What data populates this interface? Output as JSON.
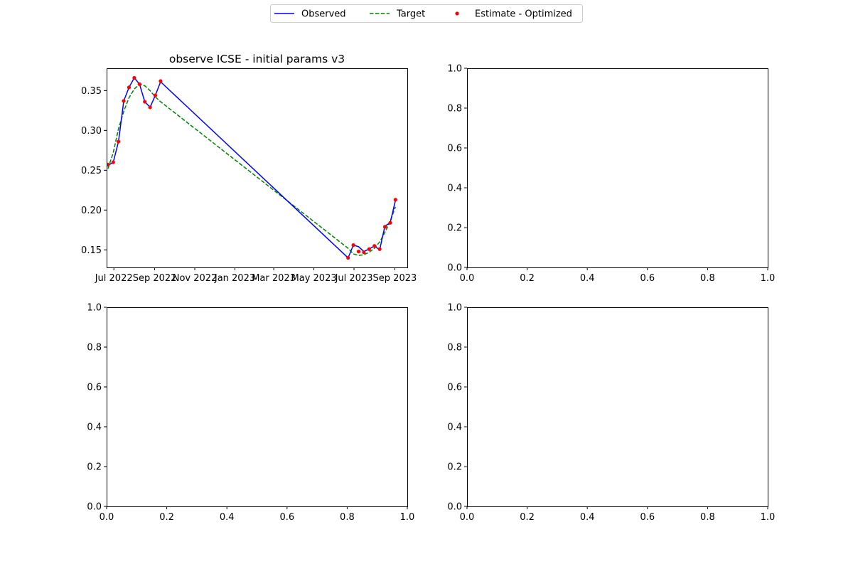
{
  "legend": {
    "placement": "top-center",
    "entries": [
      {
        "label": "Observed",
        "style": "solid-line",
        "color": "#0000ff"
      },
      {
        "label": "Target",
        "style": "dashed-line",
        "color": "#008000"
      },
      {
        "label": "Estimate - Optimized",
        "style": "dot",
        "color": "#ff0000"
      }
    ]
  },
  "chart_data": [
    {
      "type": "line",
      "title": "observe ICSE - initial params v3",
      "xlabel": "",
      "ylabel": "",
      "x_type": "date",
      "xlim": [
        "2022-06-20",
        "2023-09-20"
      ],
      "ylim": [
        0.128,
        0.378
      ],
      "x_ticks": [
        {
          "date": "2022-07-01",
          "label": "Jul 2022"
        },
        {
          "date": "2022-09-01",
          "label": "Sep 2022"
        },
        {
          "date": "2022-11-01",
          "label": "Nov 2022"
        },
        {
          "date": "2023-01-01",
          "label": "Jan 2023"
        },
        {
          "date": "2023-03-01",
          "label": "Mar 2023"
        },
        {
          "date": "2023-05-01",
          "label": "May 2023"
        },
        {
          "date": "2023-07-01",
          "label": "Jul 2023"
        },
        {
          "date": "2023-09-01",
          "label": "Sep 2023"
        }
      ],
      "y_ticks": [
        {
          "value": 0.15,
          "label": "0.15"
        },
        {
          "value": 0.2,
          "label": "0.20"
        },
        {
          "value": 0.25,
          "label": "0.25"
        },
        {
          "value": 0.3,
          "label": "0.30"
        },
        {
          "value": 0.35,
          "label": "0.35"
        }
      ],
      "grid": false,
      "series": [
        {
          "name": "Observed",
          "kind": "line",
          "color": "#0000ff",
          "points": [
            [
              "2022-06-22",
              0.256
            ],
            [
              "2022-06-30",
              0.26
            ],
            [
              "2022-07-08",
              0.286
            ],
            [
              "2022-07-16",
              0.337
            ],
            [
              "2022-07-24",
              0.354
            ],
            [
              "2022-08-01",
              0.366
            ],
            [
              "2022-08-09",
              0.358
            ],
            [
              "2022-08-17",
              0.336
            ],
            [
              "2022-08-25",
              0.329
            ],
            [
              "2022-09-02",
              0.344
            ],
            [
              "2022-09-10",
              0.361
            ],
            [
              "2023-06-22",
              0.14
            ],
            [
              "2023-06-30",
              0.156
            ],
            [
              "2023-07-08",
              0.154
            ],
            [
              "2023-07-16",
              0.148
            ],
            [
              "2023-07-24",
              0.151
            ],
            [
              "2023-08-01",
              0.155
            ],
            [
              "2023-08-09",
              0.15
            ],
            [
              "2023-08-17",
              0.18
            ],
            [
              "2023-08-25",
              0.184
            ],
            [
              "2023-09-02",
              0.212
            ]
          ]
        },
        {
          "name": "Target",
          "kind": "dashed-line",
          "color": "#008000",
          "points": [
            [
              "2022-06-22",
              0.252
            ],
            [
              "2022-06-30",
              0.272
            ],
            [
              "2022-07-08",
              0.302
            ],
            [
              "2022-07-16",
              0.324
            ],
            [
              "2022-07-24",
              0.341
            ],
            [
              "2022-08-01",
              0.352
            ],
            [
              "2022-08-09",
              0.358
            ],
            [
              "2022-08-17",
              0.356
            ],
            [
              "2022-08-25",
              0.35
            ],
            [
              "2022-09-02",
              0.342
            ],
            [
              "2022-09-10",
              0.336
            ],
            [
              "2023-06-22",
              0.152
            ],
            [
              "2023-06-30",
              0.145
            ],
            [
              "2023-07-08",
              0.143
            ],
            [
              "2023-07-16",
              0.144
            ],
            [
              "2023-07-24",
              0.147
            ],
            [
              "2023-08-01",
              0.152
            ],
            [
              "2023-08-09",
              0.16
            ],
            [
              "2023-08-17",
              0.172
            ],
            [
              "2023-08-25",
              0.186
            ],
            [
              "2023-09-02",
              0.204
            ]
          ]
        },
        {
          "name": "Estimate - Optimized",
          "kind": "scatter",
          "color": "#ff0000",
          "points": [
            [
              "2022-06-22",
              0.257
            ],
            [
              "2022-06-30",
              0.26
            ],
            [
              "2022-07-08",
              0.286
            ],
            [
              "2022-07-16",
              0.337
            ],
            [
              "2022-07-24",
              0.354
            ],
            [
              "2022-08-01",
              0.366
            ],
            [
              "2022-08-09",
              0.358
            ],
            [
              "2022-08-17",
              0.336
            ],
            [
              "2022-08-25",
              0.329
            ],
            [
              "2022-09-02",
              0.344
            ],
            [
              "2022-09-10",
              0.362
            ],
            [
              "2023-06-22",
              0.14
            ],
            [
              "2023-06-30",
              0.156
            ],
            [
              "2023-07-08",
              0.148
            ],
            [
              "2023-07-16",
              0.147
            ],
            [
              "2023-07-24",
              0.151
            ],
            [
              "2023-08-01",
              0.155
            ],
            [
              "2023-08-09",
              0.151
            ],
            [
              "2023-08-17",
              0.179
            ],
            [
              "2023-08-25",
              0.184
            ],
            [
              "2023-09-02",
              0.213
            ]
          ]
        }
      ]
    },
    {
      "type": "empty",
      "title": "",
      "xlim": [
        0,
        1
      ],
      "ylim": [
        0,
        1
      ],
      "x_ticks": [
        "0.0",
        "0.2",
        "0.4",
        "0.6",
        "0.8",
        "1.0"
      ],
      "y_ticks": [
        "0.0",
        "0.2",
        "0.4",
        "0.6",
        "0.8",
        "1.0"
      ]
    },
    {
      "type": "empty",
      "title": "",
      "xlim": [
        0,
        1
      ],
      "ylim": [
        0,
        1
      ],
      "x_ticks": [
        "0.0",
        "0.2",
        "0.4",
        "0.6",
        "0.8",
        "1.0"
      ],
      "y_ticks": [
        "0.0",
        "0.2",
        "0.4",
        "0.6",
        "0.8",
        "1.0"
      ]
    },
    {
      "type": "empty",
      "title": "",
      "xlim": [
        0,
        1
      ],
      "ylim": [
        0,
        1
      ],
      "x_ticks": [
        "0.0",
        "0.2",
        "0.4",
        "0.6",
        "0.8",
        "1.0"
      ],
      "y_ticks": [
        "0.0",
        "0.2",
        "0.4",
        "0.6",
        "0.8",
        "1.0"
      ]
    }
  ]
}
